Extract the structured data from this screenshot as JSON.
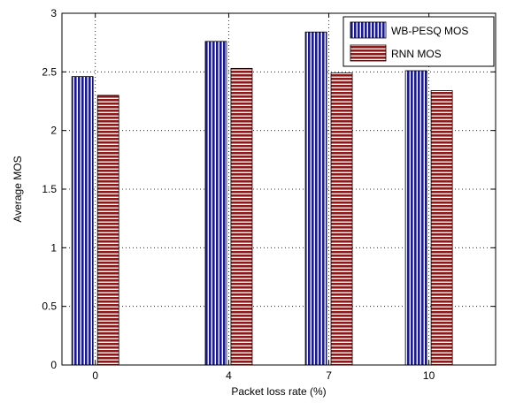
{
  "chart_data": {
    "type": "bar",
    "categories": [
      "0",
      "4",
      "7",
      "10"
    ],
    "series": [
      {
        "name": "WB-PESQ MOS",
        "values": [
          2.46,
          2.76,
          2.84,
          2.51
        ],
        "color": "#1a1a8c",
        "pattern": "vertical-stripes"
      },
      {
        "name": "RNN MOS",
        "values": [
          2.3,
          2.53,
          2.49,
          2.34
        ],
        "color": "#8b1a1a",
        "pattern": "horizontal-stripes"
      }
    ],
    "xlabel": "Packet loss rate (%)",
    "ylabel": "Average MOS",
    "ylim": [
      0,
      3
    ],
    "yticks": [
      "0",
      "0.5",
      "1",
      "1.5",
      "2",
      "2.5",
      "3"
    ],
    "grid": true,
    "grid_style": "dotted",
    "legend_position": "top-right"
  }
}
